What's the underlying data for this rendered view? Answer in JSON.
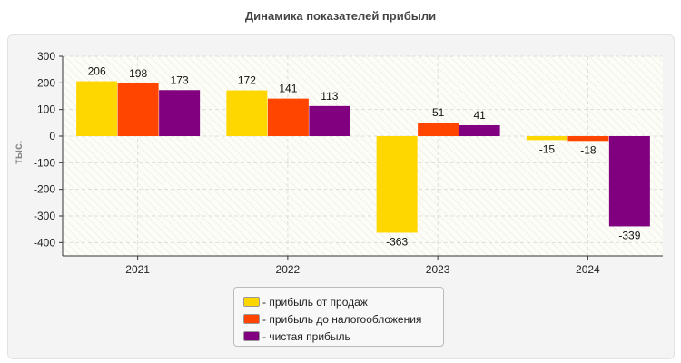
{
  "chart_data": {
    "type": "bar",
    "title": "Динамика показателей прибыли",
    "ylabel": "тыс.",
    "categories": [
      "2021",
      "2022",
      "2023",
      "2024"
    ],
    "ylim": [
      -450,
      300
    ],
    "yticks": [
      300,
      200,
      100,
      0,
      -100,
      -200,
      -300,
      -400
    ],
    "grid": true,
    "legend_position": "bottom",
    "series": [
      {
        "name": "- прибыль от продаж",
        "color": "#ffd700",
        "values": [
          206,
          172,
          -363,
          -15
        ]
      },
      {
        "name": "- прибыль до налогообложения",
        "color": "#ff4500",
        "values": [
          198,
          141,
          51,
          -18
        ]
      },
      {
        "name": "- чистая прибыль",
        "color": "#800080",
        "values": [
          173,
          113,
          41,
          -339
        ]
      }
    ]
  }
}
